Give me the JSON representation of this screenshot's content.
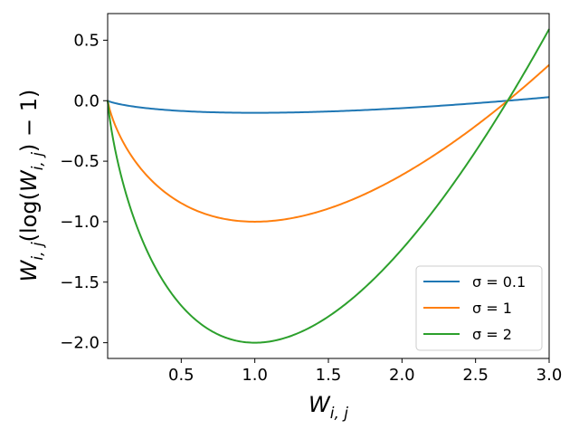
{
  "chart_data": {
    "type": "line",
    "xlabel": "W_{i,j}",
    "ylabel": "W_{i,j}(log(W_{i,j}) − 1)",
    "xlim": [
      0.0,
      3.0
    ],
    "ylim": [
      -2.13,
      0.72
    ],
    "x_ticks": [
      0.5,
      1.0,
      1.5,
      2.0,
      2.5,
      3.0
    ],
    "x_tick_labels": [
      "0.5",
      "1.0",
      "1.5",
      "2.0",
      "2.5",
      "3.0"
    ],
    "y_ticks": [
      0.5,
      0.0,
      -0.5,
      -1.0,
      -1.5,
      -2.0
    ],
    "y_tick_labels": [
      "0.5",
      "0.0",
      "−0.5",
      "−1.0",
      "−1.5",
      "−2.0"
    ],
    "grid": false,
    "legend_position": "lower-right",
    "series": [
      {
        "name": "σ = 0.1",
        "sigma": 0.1,
        "color": "#1f77b4",
        "x": [
          0.0,
          0.5,
          1.0,
          1.5,
          2.0,
          2.5,
          2.718,
          3.0
        ],
        "y": [
          0.0,
          -0.085,
          -0.1,
          -0.089,
          -0.061,
          -0.021,
          0.0,
          0.03
        ]
      },
      {
        "name": "σ = 1",
        "sigma": 1,
        "color": "#ff7f0e",
        "x": [
          0.0,
          0.25,
          0.5,
          0.75,
          1.0,
          1.5,
          2.0,
          2.5,
          2.718,
          3.0
        ],
        "y": [
          0.0,
          -0.597,
          -0.847,
          -0.966,
          -1.0,
          -0.892,
          -0.614,
          -0.209,
          0.0,
          0.296
        ]
      },
      {
        "name": "σ = 2",
        "sigma": 2,
        "color": "#2ca02c",
        "x": [
          0.0,
          0.25,
          0.5,
          0.75,
          1.0,
          1.5,
          2.0,
          2.5,
          2.718,
          3.0
        ],
        "y": [
          0.0,
          -1.193,
          -1.693,
          -1.932,
          -2.0,
          -1.784,
          -1.227,
          -0.419,
          0.0,
          0.592
        ]
      }
    ]
  }
}
